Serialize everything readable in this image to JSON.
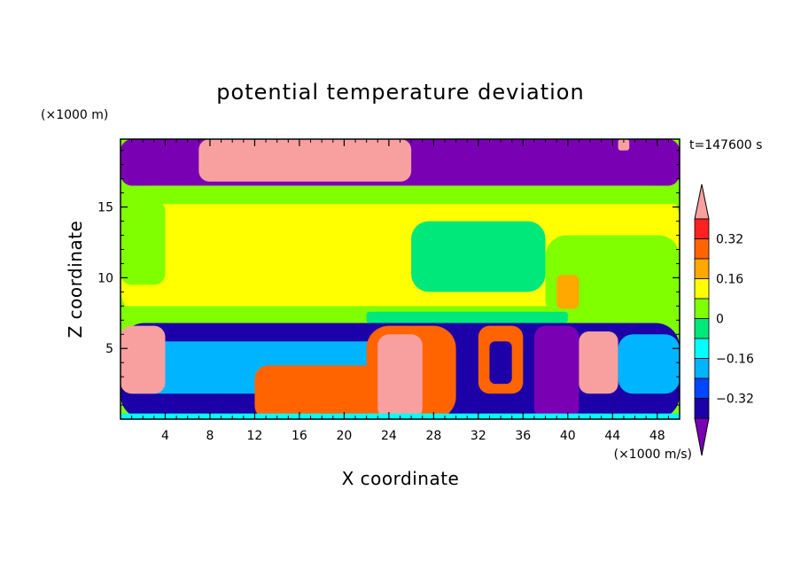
{
  "chart_data": {
    "type": "heatmap",
    "title": "potential temperature deviation",
    "xlabel": "X coordinate",
    "ylabel": "Z coordinate",
    "x_unit": "(×1000 m/s)",
    "y_unit": "(×1000 m)",
    "time_label": "t=147600 s",
    "xlim": [
      0,
      50
    ],
    "ylim": [
      0,
      19.8
    ],
    "x_ticks": [
      4,
      8,
      12,
      16,
      20,
      24,
      28,
      32,
      36,
      40,
      44,
      48
    ],
    "y_ticks": [
      5,
      10,
      15
    ],
    "colorbar": {
      "levels": [
        -0.4,
        -0.32,
        -0.24,
        -0.16,
        -0.08,
        0,
        0.08,
        0.16,
        0.24,
        0.32,
        0.4
      ],
      "labeled_levels": [
        "0.32",
        "0.16",
        "0",
        "−0.16",
        "−0.32"
      ],
      "colors": [
        "#7a00b4",
        "#1c00a8",
        "#0046ff",
        "#00b4ff",
        "#00ffff",
        "#00e87a",
        "#80ff00",
        "#ffff00",
        "#ffa800",
        "#ff6400",
        "#ff2020",
        "#f8a0a0"
      ]
    },
    "regions": [
      {
        "x0": 0,
        "x1": 50,
        "z0": 16.5,
        "z1": 19.8,
        "level": -0.44
      },
      {
        "x0": 7,
        "x1": 26,
        "z0": 16.8,
        "z1": 19.8,
        "level": 0.44
      },
      {
        "x0": 44.5,
        "x1": 45.5,
        "z0": 19.0,
        "z1": 19.8,
        "level": 0.44
      },
      {
        "x0": 0,
        "x1": 50,
        "z0": 6.8,
        "z1": 16.5,
        "level": 0.1
      },
      {
        "x0": 0,
        "x1": 50,
        "z0": 15.2,
        "z1": 16.5,
        "level": 0.02
      },
      {
        "x0": 0,
        "x1": 4,
        "z0": 9.5,
        "z1": 15.5,
        "level": 0.02
      },
      {
        "x0": 26,
        "x1": 38,
        "z0": 9.0,
        "z1": 14.0,
        "level": -0.04
      },
      {
        "x0": 38,
        "x1": 50,
        "z0": 7.0,
        "z1": 13.0,
        "level": 0.02
      },
      {
        "x0": 0,
        "x1": 50,
        "z0": 6.8,
        "z1": 8.0,
        "level": 0.02
      },
      {
        "x0": 22,
        "x1": 40,
        "z0": 6.8,
        "z1": 7.6,
        "level": -0.04
      },
      {
        "x0": 39,
        "x1": 41,
        "z0": 7.8,
        "z1": 10.2,
        "level": 0.18
      },
      {
        "x0": 0,
        "x1": 50,
        "z0": 0,
        "z1": 6.8,
        "level": -0.36
      },
      {
        "x0": 0,
        "x1": 24,
        "z0": 1.8,
        "z1": 5.5,
        "level": -0.2
      },
      {
        "x0": 0,
        "x1": 4,
        "z0": 1.8,
        "z1": 6.6,
        "level": 0.44
      },
      {
        "x0": 12,
        "x1": 24,
        "z0": 0,
        "z1": 3.8,
        "level": 0.28
      },
      {
        "x0": 22,
        "x1": 30,
        "z0": 0,
        "z1": 6.6,
        "level": 0.28
      },
      {
        "x0": 23,
        "x1": 27,
        "z0": 0,
        "z1": 6.0,
        "level": 0.44
      },
      {
        "x0": 32,
        "x1": 36,
        "z0": 1.8,
        "z1": 6.6,
        "level": 0.3
      },
      {
        "x0": 33,
        "x1": 35,
        "z0": 2.5,
        "z1": 5.5,
        "level": -0.4
      },
      {
        "x0": 37,
        "x1": 41,
        "z0": 0,
        "z1": 6.6,
        "level": -0.42
      },
      {
        "x0": 41,
        "x1": 44.5,
        "z0": 1.8,
        "z1": 6.2,
        "level": 0.44
      },
      {
        "x0": 44.5,
        "x1": 50,
        "z0": 1.8,
        "z1": 6.0,
        "level": -0.2
      },
      {
        "x0": 0,
        "x1": 50,
        "z0": 0,
        "z1": 0.4,
        "level": -0.12
      }
    ]
  }
}
